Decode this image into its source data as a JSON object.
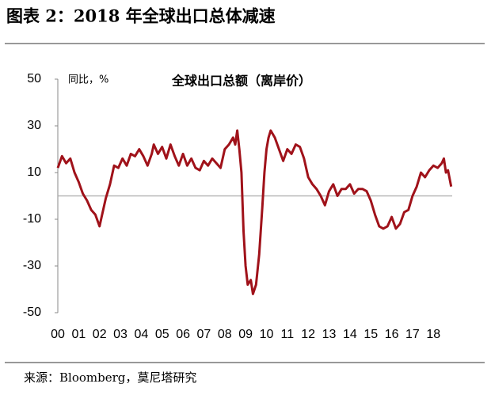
{
  "title": "图表 2：2018 年全球出口总体减速",
  "source": "来源：Bloomberg，莫尼塔研究",
  "chart_data": {
    "type": "line",
    "title": "全球出口总额（离岸价）",
    "y_label": "同比，%",
    "color": "#a0121a",
    "x": [
      2000.0,
      2000.2,
      2000.4,
      2000.6,
      2000.8,
      2001.0,
      2001.2,
      2001.4,
      2001.6,
      2001.8,
      2002.0,
      2002.1,
      2002.3,
      2002.5,
      2002.7,
      2002.9,
      2003.1,
      2003.3,
      2003.5,
      2003.7,
      2003.9,
      2004.1,
      2004.3,
      2004.5,
      2004.6,
      2004.8,
      2005.0,
      2005.2,
      2005.4,
      2005.6,
      2005.8,
      2006.0,
      2006.2,
      2006.4,
      2006.6,
      2006.8,
      2007.0,
      2007.2,
      2007.4,
      2007.6,
      2007.8,
      2008.0,
      2008.2,
      2008.4,
      2008.5,
      2008.6,
      2008.7,
      2008.8,
      2008.9,
      2009.0,
      2009.1,
      2009.25,
      2009.35,
      2009.5,
      2009.65,
      2009.8,
      2009.9,
      2010.0,
      2010.1,
      2010.2,
      2010.4,
      2010.6,
      2010.8,
      2011.0,
      2011.2,
      2011.4,
      2011.6,
      2011.8,
      2012.0,
      2012.2,
      2012.4,
      2012.6,
      2012.8,
      2013.0,
      2013.2,
      2013.4,
      2013.6,
      2013.8,
      2014.0,
      2014.2,
      2014.4,
      2014.6,
      2014.8,
      2015.0,
      2015.2,
      2015.4,
      2015.6,
      2015.8,
      2016.0,
      2016.2,
      2016.4,
      2016.6,
      2016.8,
      2017.0,
      2017.2,
      2017.4,
      2017.6,
      2017.8,
      2018.0,
      2018.2,
      2018.4,
      2018.5,
      2018.6,
      2018.7,
      2018.85
    ],
    "values": [
      12,
      17,
      14,
      16,
      10,
      6,
      1,
      -2,
      -6,
      -8,
      -13,
      -9,
      -1,
      5,
      13,
      12,
      16,
      13,
      18,
      17,
      20,
      17,
      13,
      18,
      22,
      18,
      21,
      16,
      22,
      17,
      13,
      18,
      13,
      16,
      12,
      11,
      15,
      13,
      16,
      14,
      12,
      20,
      22,
      25,
      22,
      28,
      20,
      10,
      -15,
      -30,
      -38,
      -36,
      -42,
      -38,
      -25,
      -5,
      10,
      20,
      25,
      28,
      25,
      20,
      15,
      20,
      18,
      22,
      21,
      16,
      8,
      5,
      3,
      0,
      -4,
      2,
      5,
      0,
      3,
      3,
      5,
      1,
      3,
      3,
      2,
      -2,
      -8,
      -13,
      -14,
      -13,
      -9,
      -14,
      -12,
      -7,
      -6,
      0,
      4,
      10,
      8,
      11,
      13,
      12,
      14,
      16,
      10,
      11,
      4
    ],
    "xlim": [
      2000,
      2018.9
    ],
    "xticks": [
      {
        "value": 2000,
        "label": "00"
      },
      {
        "value": 2001,
        "label": "01"
      },
      {
        "value": 2002,
        "label": "02"
      },
      {
        "value": 2003,
        "label": "03"
      },
      {
        "value": 2004,
        "label": "04"
      },
      {
        "value": 2005,
        "label": "05"
      },
      {
        "value": 2006,
        "label": "06"
      },
      {
        "value": 2007,
        "label": "07"
      },
      {
        "value": 2008,
        "label": "08"
      },
      {
        "value": 2009,
        "label": "09"
      },
      {
        "value": 2010,
        "label": "10"
      },
      {
        "value": 2011,
        "label": "11"
      },
      {
        "value": 2012,
        "label": "12"
      },
      {
        "value": 2013,
        "label": "13"
      },
      {
        "value": 2014,
        "label": "14"
      },
      {
        "value": 2015,
        "label": "15"
      },
      {
        "value": 2016,
        "label": "16"
      },
      {
        "value": 2017,
        "label": "17"
      },
      {
        "value": 2018,
        "label": "18"
      }
    ],
    "ylim": [
      -50,
      50
    ],
    "yticks": [
      50,
      30,
      10,
      -10,
      -30,
      -50
    ]
  }
}
